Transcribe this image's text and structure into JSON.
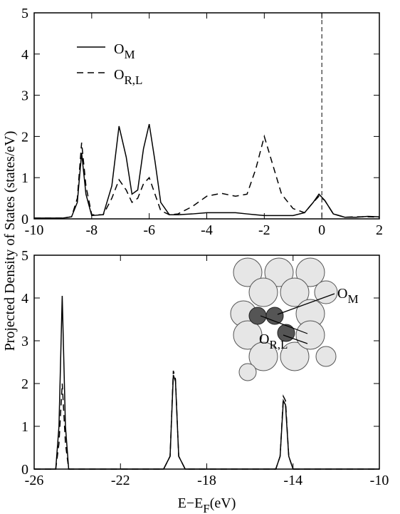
{
  "chart_data": [
    {
      "type": "line",
      "ylabel": "Projected Density of States (states/eV)",
      "x": [
        -10,
        -9,
        -8.7,
        -8.5,
        -8.35,
        -8.2,
        -8,
        -7.6,
        -7.3,
        -7.05,
        -6.8,
        -6.6,
        -6.4,
        -6.2,
        -6,
        -5.8,
        -5.6,
        -5.3,
        -5,
        -4.5,
        -4,
        -3.5,
        -3,
        -2.6,
        -2.3,
        -2,
        -1.7,
        -1.4,
        -1,
        -0.6,
        -0.3,
        -0.1,
        0.1,
        0.4,
        0.8,
        1.2,
        1.6,
        2
      ],
      "series": [
        {
          "name": "O",
          "name_subscript": "M",
          "color": "#000000",
          "dash": "solid",
          "values": [
            0.02,
            0.02,
            0.05,
            0.4,
            1.6,
            0.6,
            0.08,
            0.1,
            0.8,
            2.25,
            1.5,
            0.6,
            0.7,
            1.7,
            2.3,
            1.4,
            0.4,
            0.1,
            0.1,
            0.12,
            0.15,
            0.15,
            0.15,
            0.12,
            0.1,
            0.08,
            0.08,
            0.08,
            0.08,
            0.15,
            0.4,
            0.6,
            0.45,
            0.12,
            0.04,
            0.04,
            0.06,
            0.05
          ]
        },
        {
          "name": "O",
          "name_subscript": "R,L",
          "color": "#000000",
          "dash": "dashed",
          "values": [
            0.02,
            0.02,
            0.05,
            0.5,
            1.85,
            0.8,
            0.1,
            0.1,
            0.5,
            0.95,
            0.7,
            0.4,
            0.5,
            0.85,
            1.0,
            0.6,
            0.2,
            0.1,
            0.12,
            0.3,
            0.55,
            0.62,
            0.55,
            0.6,
            1.2,
            2.0,
            1.3,
            0.6,
            0.25,
            0.15,
            0.4,
            0.55,
            0.45,
            0.12,
            0.04,
            0.05,
            0.05,
            0.04
          ]
        }
      ],
      "xlim": [
        -10,
        2
      ],
      "xticks": [
        -10,
        -8,
        -6,
        -4,
        -2,
        0,
        2
      ],
      "ylim": [
        0,
        5
      ],
      "yticks": [
        0,
        1,
        2,
        3,
        4,
        5
      ],
      "vline": 0,
      "legend": "upper left"
    },
    {
      "type": "line",
      "xlabel": "E−E",
      "xlabel_subscript": "F",
      "xlabel_suffix": "(eV)",
      "x": [
        -26,
        -25,
        -24.85,
        -24.7,
        -24.55,
        -24.4,
        -20,
        -19.7,
        -19.55,
        -19.45,
        -19.3,
        -19,
        -14.8,
        -14.6,
        -14.45,
        -14.35,
        -14.2,
        -14,
        -10
      ],
      "series": [
        {
          "name": "O",
          "name_subscript": "M",
          "color": "#000000",
          "dash": "solid",
          "values": [
            0,
            0,
            1.0,
            4.05,
            1.0,
            0,
            0,
            0.3,
            2.2,
            2.05,
            0.3,
            0,
            0,
            0.3,
            1.6,
            1.5,
            0.3,
            0,
            0
          ]
        },
        {
          "name": "O",
          "name_subscript": "R,L",
          "color": "#000000",
          "dash": "dashed",
          "values": [
            0,
            0,
            0.6,
            2.0,
            0.6,
            0,
            0,
            0.3,
            2.3,
            2.1,
            0.3,
            0,
            0,
            0.3,
            1.7,
            1.6,
            0.3,
            0,
            0
          ]
        }
      ],
      "xlim": [
        -26,
        -10
      ],
      "xticks": [
        -26,
        -22,
        -18,
        -14,
        -10
      ],
      "ylim": [
        0,
        5
      ],
      "yticks": [
        0,
        1,
        2,
        3,
        4,
        5
      ],
      "annotations": [
        {
          "text": "O",
          "subscript": "M"
        },
        {
          "text": "O",
          "subscript": "R,L"
        }
      ]
    }
  ]
}
